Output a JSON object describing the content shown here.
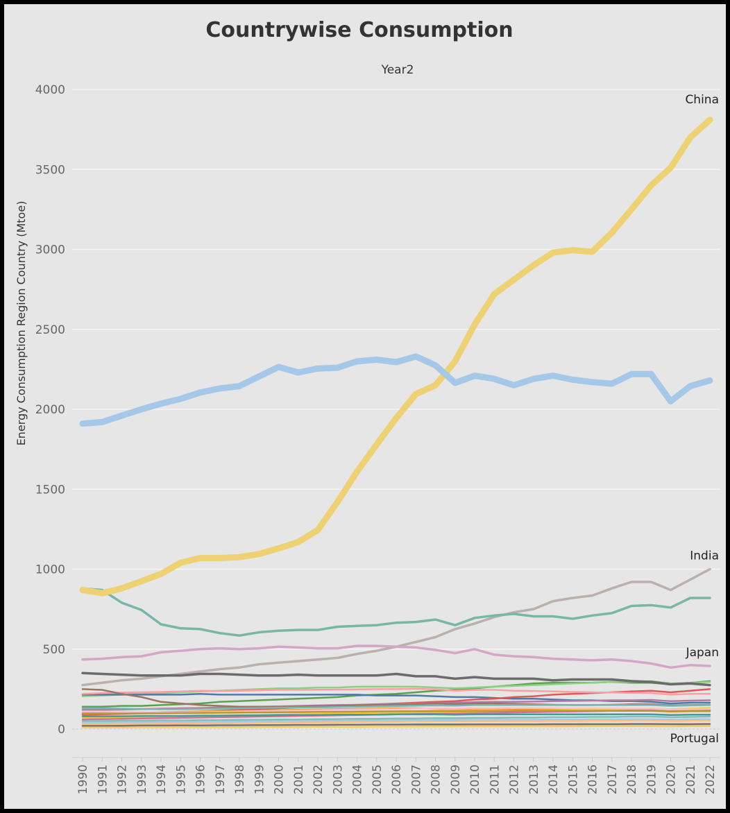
{
  "chart_data": {
    "type": "line",
    "title": "Countrywise Consumption",
    "header": "Year2",
    "ylabel": "Energy Consumption Region Country (Mtoe)",
    "xlabel": "",
    "ylim": [
      0,
      4000
    ],
    "y_ticks": [
      0,
      500,
      1000,
      1500,
      2000,
      2500,
      3000,
      3500,
      4000
    ],
    "grid": "horizontal",
    "x": [
      "1990",
      "1991",
      "1992",
      "1993",
      "1994",
      "1995",
      "1996",
      "1997",
      "1998",
      "1999",
      "2000",
      "2001",
      "2002",
      "2003",
      "2004",
      "2005",
      "2006",
      "2007",
      "2008",
      "2009",
      "2010",
      "2011",
      "2012",
      "2013",
      "2014",
      "2015",
      "2016",
      "2017",
      "2018",
      "2019",
      "2020",
      "2021",
      "2022"
    ],
    "series": [
      {
        "name": "China",
        "color": "#edd173",
        "width": 9,
        "labeled": true,
        "values": [
          870,
          850,
          880,
          925,
          970,
          1040,
          1070,
          1070,
          1075,
          1095,
          1130,
          1170,
          1245,
          1420,
          1610,
          1780,
          1945,
          2095,
          2150,
          2300,
          2530,
          2720,
          2810,
          2900,
          2980,
          2995,
          2985,
          3105,
          3250,
          3400,
          3510,
          3700,
          3810
        ]
      },
      {
        "name": "",
        "color": "#a6c8e8",
        "width": 9,
        "labeled": false,
        "values": [
          1910,
          1920,
          1960,
          2000,
          2035,
          2065,
          2105,
          2130,
          2145,
          2205,
          2265,
          2230,
          2255,
          2260,
          2300,
          2310,
          2295,
          2330,
          2275,
          2165,
          2210,
          2190,
          2150,
          2190,
          2210,
          2185,
          2170,
          2160,
          2220,
          2220,
          2050,
          2145,
          2180
        ]
      },
      {
        "name": "India",
        "color": "#bab0ac",
        "width": 3.5,
        "labeled": true,
        "values": [
          275,
          290,
          305,
          315,
          330,
          345,
          360,
          375,
          385,
          405,
          415,
          425,
          435,
          445,
          470,
          490,
          515,
          545,
          575,
          625,
          660,
          700,
          730,
          750,
          800,
          820,
          835,
          880,
          920,
          920,
          870,
          935,
          1000
        ]
      },
      {
        "name": "",
        "color": "#76b7a6",
        "width": 3.5,
        "labeled": false,
        "values": [
          880,
          870,
          790,
          745,
          655,
          630,
          625,
          600,
          585,
          605,
          615,
          620,
          620,
          640,
          645,
          650,
          665,
          670,
          685,
          650,
          695,
          710,
          720,
          705,
          705,
          690,
          710,
          725,
          770,
          775,
          760,
          820,
          820
        ]
      },
      {
        "name": "Japan",
        "color": "#d4a6c8",
        "width": 3.5,
        "labeled": true,
        "values": [
          435,
          440,
          450,
          455,
          480,
          490,
          500,
          505,
          500,
          505,
          515,
          510,
          505,
          505,
          520,
          520,
          515,
          510,
          495,
          475,
          500,
          465,
          455,
          450,
          440,
          435,
          430,
          435,
          425,
          410,
          385,
          400,
          395
        ]
      },
      {
        "name": "",
        "color": "#6b6b6b",
        "width": 3.5,
        "labeled": false,
        "values": [
          350,
          345,
          340,
          335,
          335,
          335,
          345,
          345,
          340,
          335,
          335,
          340,
          335,
          335,
          335,
          335,
          345,
          330,
          330,
          315,
          325,
          315,
          315,
          315,
          305,
          310,
          310,
          310,
          300,
          295,
          280,
          285,
          275
        ]
      },
      {
        "name": "",
        "color": "#59a14f",
        "width": 2.5,
        "labeled": false,
        "values": [
          140,
          140,
          145,
          145,
          150,
          155,
          160,
          170,
          175,
          180,
          185,
          190,
          195,
          200,
          210,
          215,
          220,
          230,
          240,
          245,
          255,
          265,
          275,
          285,
          290,
          290,
          290,
          295,
          290,
          290,
          280,
          290,
          300
        ]
      },
      {
        "name": "",
        "color": "#8cd17d",
        "width": 2.5,
        "labeled": false,
        "values": [
          205,
          210,
          215,
          220,
          225,
          230,
          235,
          240,
          245,
          250,
          255,
          255,
          260,
          260,
          265,
          265,
          265,
          265,
          260,
          255,
          260,
          265,
          270,
          275,
          280,
          285,
          290,
          295,
          295,
          300,
          285,
          290,
          295
        ]
      },
      {
        "name": "",
        "color": "#4e79a7",
        "width": 2.5,
        "labeled": false,
        "values": [
          215,
          215,
          215,
          215,
          215,
          215,
          220,
          215,
          215,
          215,
          215,
          215,
          215,
          215,
          215,
          210,
          210,
          210,
          205,
          200,
          200,
          195,
          190,
          190,
          185,
          180,
          180,
          175,
          175,
          170,
          160,
          165,
          165
        ]
      },
      {
        "name": "",
        "color": "#e15759",
        "width": 2.5,
        "labeled": false,
        "values": [
          90,
          92,
          95,
          98,
          100,
          105,
          110,
          115,
          120,
          125,
          130,
          135,
          140,
          145,
          150,
          155,
          160,
          165,
          170,
          175,
          185,
          190,
          200,
          205,
          215,
          220,
          225,
          230,
          235,
          240,
          230,
          240,
          250
        ]
      },
      {
        "name": "",
        "color": "#ff9da7",
        "width": 2.5,
        "labeled": false,
        "values": [
          220,
          225,
          228,
          230,
          232,
          235,
          240,
          238,
          240,
          242,
          245,
          245,
          246,
          247,
          248,
          250,
          250,
          252,
          248,
          240,
          245,
          245,
          240,
          238,
          235,
          232,
          230,
          228,
          226,
          225,
          215,
          220,
          220
        ]
      },
      {
        "name": "",
        "color": "#b07aa1",
        "width": 2.5,
        "labeled": false,
        "values": [
          120,
          120,
          122,
          125,
          128,
          130,
          132,
          135,
          138,
          140,
          142,
          145,
          148,
          150,
          152,
          155,
          158,
          160,
          162,
          165,
          168,
          170,
          170,
          172,
          175,
          176,
          178,
          180,
          180,
          182,
          175,
          178,
          180
        ]
      },
      {
        "name": "",
        "color": "#9c755f",
        "width": 2.5,
        "labeled": false,
        "values": [
          250,
          245,
          220,
          200,
          170,
          160,
          150,
          145,
          140,
          140,
          138,
          140,
          142,
          145,
          148,
          150,
          152,
          155,
          160,
          155,
          160,
          160,
          158,
          155,
          152,
          150,
          150,
          152,
          155,
          155,
          148,
          150,
          152
        ]
      },
      {
        "name": "",
        "color": "#f28e2b",
        "width": 2.5,
        "labeled": false,
        "values": [
          100,
          100,
          102,
          104,
          106,
          108,
          110,
          112,
          114,
          116,
          118,
          120,
          122,
          124,
          126,
          128,
          130,
          130,
          128,
          125,
          128,
          128,
          126,
          124,
          122,
          120,
          118,
          118,
          118,
          116,
          110,
          112,
          114
        ]
      },
      {
        "name": "",
        "color": "#76b7b2",
        "width": 2.5,
        "labeled": false,
        "values": [
          130,
          130,
          128,
          126,
          124,
          124,
          126,
          128,
          130,
          132,
          134,
          135,
          136,
          138,
          140,
          142,
          144,
          146,
          148,
          146,
          150,
          150,
          150,
          150,
          150,
          150,
          150,
          150,
          150,
          150,
          145,
          148,
          150
        ]
      },
      {
        "name": "",
        "color": "#edc948",
        "width": 2.5,
        "labeled": false,
        "values": [
          70,
          72,
          74,
          76,
          78,
          80,
          82,
          84,
          86,
          88,
          90,
          92,
          94,
          96,
          98,
          100,
          102,
          104,
          106,
          106,
          110,
          112,
          114,
          116,
          118,
          120,
          122,
          124,
          126,
          128,
          124,
          128,
          132
        ]
      },
      {
        "name": "",
        "color": "#d37295",
        "width": 2.5,
        "labeled": false,
        "values": [
          60,
          62,
          64,
          66,
          68,
          70,
          72,
          74,
          76,
          78,
          80,
          82,
          84,
          86,
          88,
          90,
          92,
          94,
          96,
          96,
          100,
          102,
          104,
          106,
          108,
          110,
          112,
          114,
          116,
          118,
          112,
          116,
          120
        ]
      },
      {
        "name": "",
        "color": "#499894",
        "width": 2.5,
        "labeled": false,
        "values": [
          80,
          80,
          80,
          82,
          82,
          82,
          84,
          84,
          86,
          86,
          88,
          88,
          88,
          90,
          90,
          90,
          92,
          92,
          92,
          90,
          92,
          92,
          92,
          92,
          92,
          92,
          92,
          92,
          92,
          92,
          88,
          90,
          90
        ]
      },
      {
        "name": "",
        "color": "#86bcb6",
        "width": 2.5,
        "labeled": false,
        "values": [
          50,
          50,
          52,
          52,
          54,
          54,
          56,
          56,
          58,
          58,
          60,
          60,
          62,
          62,
          64,
          64,
          66,
          66,
          68,
          68,
          70,
          70,
          72,
          72,
          74,
          74,
          76,
          76,
          78,
          78,
          74,
          76,
          78
        ]
      },
      {
        "name": "",
        "color": "#fabfd2",
        "width": 2.5,
        "labeled": false,
        "values": [
          110,
          110,
          108,
          106,
          104,
          104,
          106,
          108,
          110,
          112,
          114,
          116,
          118,
          120,
          122,
          124,
          126,
          128,
          130,
          128,
          132,
          132,
          132,
          132,
          132,
          130,
          130,
          130,
          128,
          128,
          122,
          124,
          126
        ]
      },
      {
        "name": "",
        "color": "#a0cbe8",
        "width": 2.5,
        "labeled": false,
        "values": [
          40,
          40,
          41,
          42,
          43,
          44,
          45,
          46,
          47,
          48,
          49,
          50,
          51,
          52,
          53,
          54,
          55,
          56,
          57,
          57,
          58,
          58,
          59,
          59,
          60,
          60,
          61,
          61,
          62,
          62,
          60,
          61,
          62
        ]
      },
      {
        "name": "",
        "color": "#ffbe7d",
        "width": 2.5,
        "labeled": false,
        "values": [
          30,
          30,
          31,
          32,
          33,
          34,
          35,
          36,
          37,
          38,
          39,
          40,
          41,
          42,
          43,
          44,
          45,
          46,
          47,
          47,
          48,
          48,
          49,
          49,
          50,
          50,
          51,
          51,
          52,
          52,
          50,
          51,
          52
        ]
      },
      {
        "name": "",
        "color": "#79706e",
        "width": 2.5,
        "labeled": false,
        "values": [
          20,
          20,
          21,
          22,
          22,
          23,
          23,
          24,
          24,
          25,
          25,
          26,
          26,
          27,
          27,
          28,
          28,
          29,
          29,
          29,
          30,
          30,
          30,
          30,
          31,
          31,
          31,
          31,
          32,
          32,
          31,
          31,
          32
        ]
      },
      {
        "name": "",
        "color": "#b6992d",
        "width": 2.5,
        "labeled": false,
        "values": [
          95,
          96,
          97,
          98,
          99,
          100,
          101,
          102,
          103,
          104,
          105,
          106,
          107,
          108,
          109,
          110,
          111,
          112,
          113,
          112,
          114,
          114,
          114,
          114,
          114,
          114,
          114,
          114,
          114,
          114,
          110,
          112,
          112
        ]
      },
      {
        "name": "",
        "color": "#f1ce63",
        "width": 2.5,
        "labeled": false,
        "values": [
          10,
          10,
          10,
          11,
          11,
          11,
          12,
          12,
          12,
          13,
          13,
          13,
          14,
          14,
          14,
          15,
          15,
          15,
          16,
          16,
          16,
          16,
          17,
          17,
          17,
          17,
          18,
          18,
          18,
          18,
          17,
          18,
          18
        ]
      },
      {
        "name": "Portugal",
        "color": "#a0cbe8",
        "width": 2,
        "labeled": true,
        "values": [
          17,
          18,
          19,
          20,
          21,
          22,
          22,
          23,
          24,
          25,
          25,
          25,
          26,
          26,
          26,
          27,
          27,
          26,
          25,
          24,
          24,
          24,
          23,
          22,
          22,
          22,
          22,
          23,
          23,
          23,
          21,
          22,
          22
        ]
      }
    ]
  }
}
